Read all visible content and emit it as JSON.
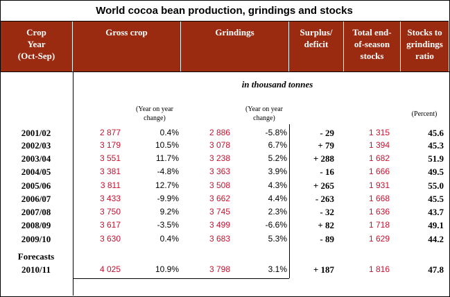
{
  "title": "World cocoa bean production, grindings and stocks",
  "headers": {
    "crop_year": [
      "Crop",
      "Year",
      "(Oct-Sep)"
    ],
    "gross_crop": "Gross crop",
    "grindings": "Grindings",
    "surplus": [
      "Surplus/",
      "deficit"
    ],
    "total_stocks": [
      "Total end-",
      "of-season",
      "stocks"
    ],
    "ratio": [
      "Stocks to",
      "grindings",
      "ratio"
    ]
  },
  "unit_label": "in thousand tonnes",
  "yoy_note": [
    "(Year on year",
    "change)"
  ],
  "percent_note": "(Percent)",
  "forecasts_label": "Forecasts",
  "rows": [
    {
      "year": "2001/02",
      "gross": "2 877",
      "gross_chg": "0.4%",
      "grind": "2 886",
      "grind_chg": "-5.8%",
      "surplus": "- 29",
      "stocks": "1 315",
      "ratio": "45.6"
    },
    {
      "year": "2002/03",
      "gross": "3 179",
      "gross_chg": "10.5%",
      "grind": "3 078",
      "grind_chg": "6.7%",
      "surplus": "+ 79",
      "stocks": "1 394",
      "ratio": "45.3"
    },
    {
      "year": "2003/04",
      "gross": "3 551",
      "gross_chg": "11.7%",
      "grind": "3 238",
      "grind_chg": "5.2%",
      "surplus": "+ 288",
      "stocks": "1 682",
      "ratio": "51.9"
    },
    {
      "year": "2004/05",
      "gross": "3 381",
      "gross_chg": "-4.8%",
      "grind": "3 363",
      "grind_chg": "3.9%",
      "surplus": "- 16",
      "stocks": "1 666",
      "ratio": "49.5"
    },
    {
      "year": "2005/06",
      "gross": "3 811",
      "gross_chg": "12.7%",
      "grind": "3 508",
      "grind_chg": "4.3%",
      "surplus": "+ 265",
      "stocks": "1 931",
      "ratio": "55.0"
    },
    {
      "year": "2006/07",
      "gross": "3 433",
      "gross_chg": "-9.9%",
      "grind": "3 662",
      "grind_chg": "4.4%",
      "surplus": "- 263",
      "stocks": "1 668",
      "ratio": "45.5"
    },
    {
      "year": "2007/08",
      "gross": "3 750",
      "gross_chg": "9.2%",
      "grind": "3 745",
      "grind_chg": "2.3%",
      "surplus": "- 32",
      "stocks": "1 636",
      "ratio": "43.7"
    },
    {
      "year": "2008/09",
      "gross": "3 617",
      "gross_chg": "-3.5%",
      "grind": "3 499",
      "grind_chg": "-6.6%",
      "surplus": "+ 82",
      "stocks": "1 718",
      "ratio": "49.1"
    },
    {
      "year": "2009/10",
      "gross": "3 630",
      "gross_chg": "0.4%",
      "grind": "3 683",
      "grind_chg": "5.3%",
      "surplus": "- 89",
      "stocks": "1 629",
      "ratio": "44.2"
    }
  ],
  "forecast_row": {
    "year": "2010/11",
    "gross": "4 025",
    "gross_chg": "10.9%",
    "grind": "3 798",
    "grind_chg": "3.1%",
    "surplus": "+ 187",
    "stocks": "1 816",
    "ratio": "47.8"
  },
  "colors": {
    "header_bg": "#9a2a10",
    "value_red": "#c8102e"
  }
}
